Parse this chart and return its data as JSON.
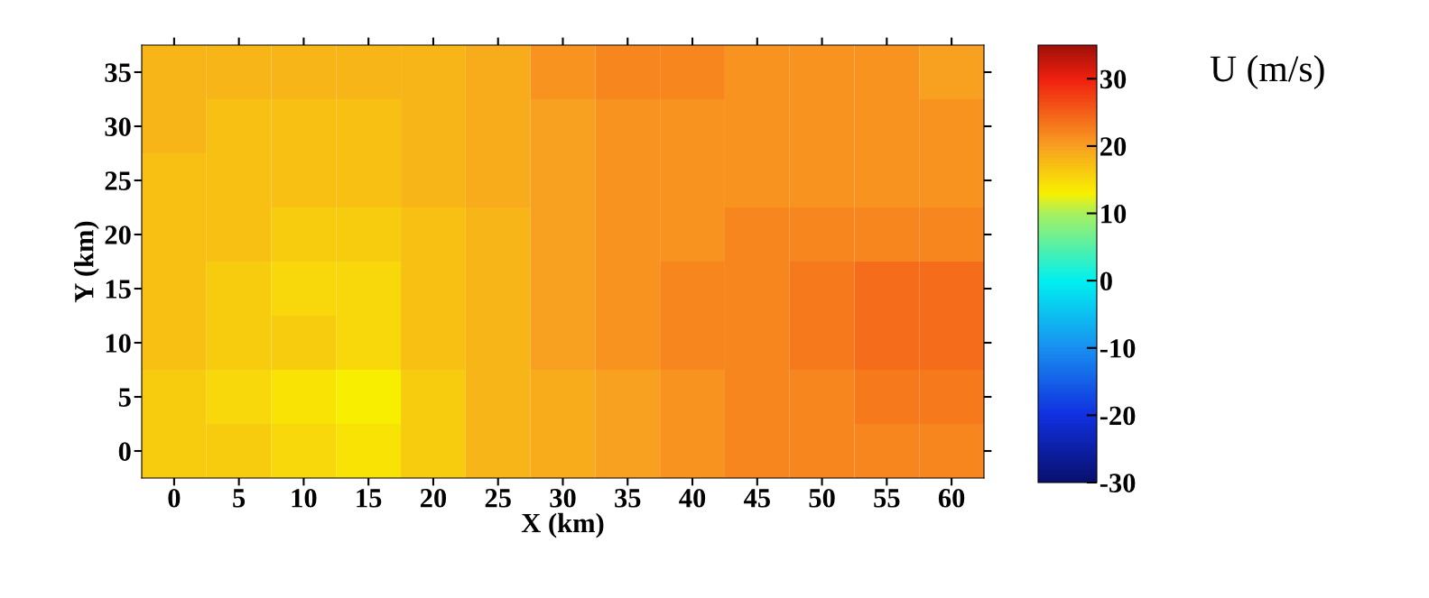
{
  "chart_data": {
    "type": "heatmap",
    "xlabel": "X (km)",
    "ylabel": "Y (km)",
    "clabel": "U (m/s)",
    "categories": [
      "0",
      "5",
      "10",
      "15",
      "20",
      "25",
      "30",
      "35",
      "40",
      "45",
      "50",
      "55",
      "60"
    ],
    "y_categories": [
      "35",
      "30",
      "25",
      "20",
      "15",
      "10",
      "5",
      "0"
    ],
    "clim": [
      -30,
      35
    ],
    "cticks": [
      -30,
      -20,
      -10,
      0,
      10,
      20,
      30
    ],
    "cells": [
      [
        18,
        18,
        18,
        18,
        18,
        19,
        21,
        22,
        22,
        21,
        21,
        21,
        20
      ],
      [
        18,
        17,
        17,
        17,
        18,
        19,
        20,
        21,
        21,
        21,
        21,
        21,
        21
      ],
      [
        17,
        17,
        17,
        17,
        18,
        19,
        20,
        21,
        21,
        21,
        21,
        21,
        21
      ],
      [
        17,
        17,
        16,
        16,
        17,
        18,
        20,
        21,
        21,
        22,
        22,
        22,
        22
      ],
      [
        17,
        16,
        15,
        15,
        17,
        18,
        20,
        21,
        22,
        22,
        23,
        24,
        24
      ],
      [
        17,
        16,
        16,
        15,
        17,
        18,
        20,
        21,
        22,
        22,
        23,
        24,
        24
      ],
      [
        16,
        15,
        14,
        13,
        16,
        18,
        19,
        20,
        21,
        22,
        22,
        23,
        23
      ],
      [
        16,
        16,
        15,
        14,
        16,
        18,
        19,
        20,
        21,
        22,
        22,
        22,
        22
      ]
    ]
  }
}
